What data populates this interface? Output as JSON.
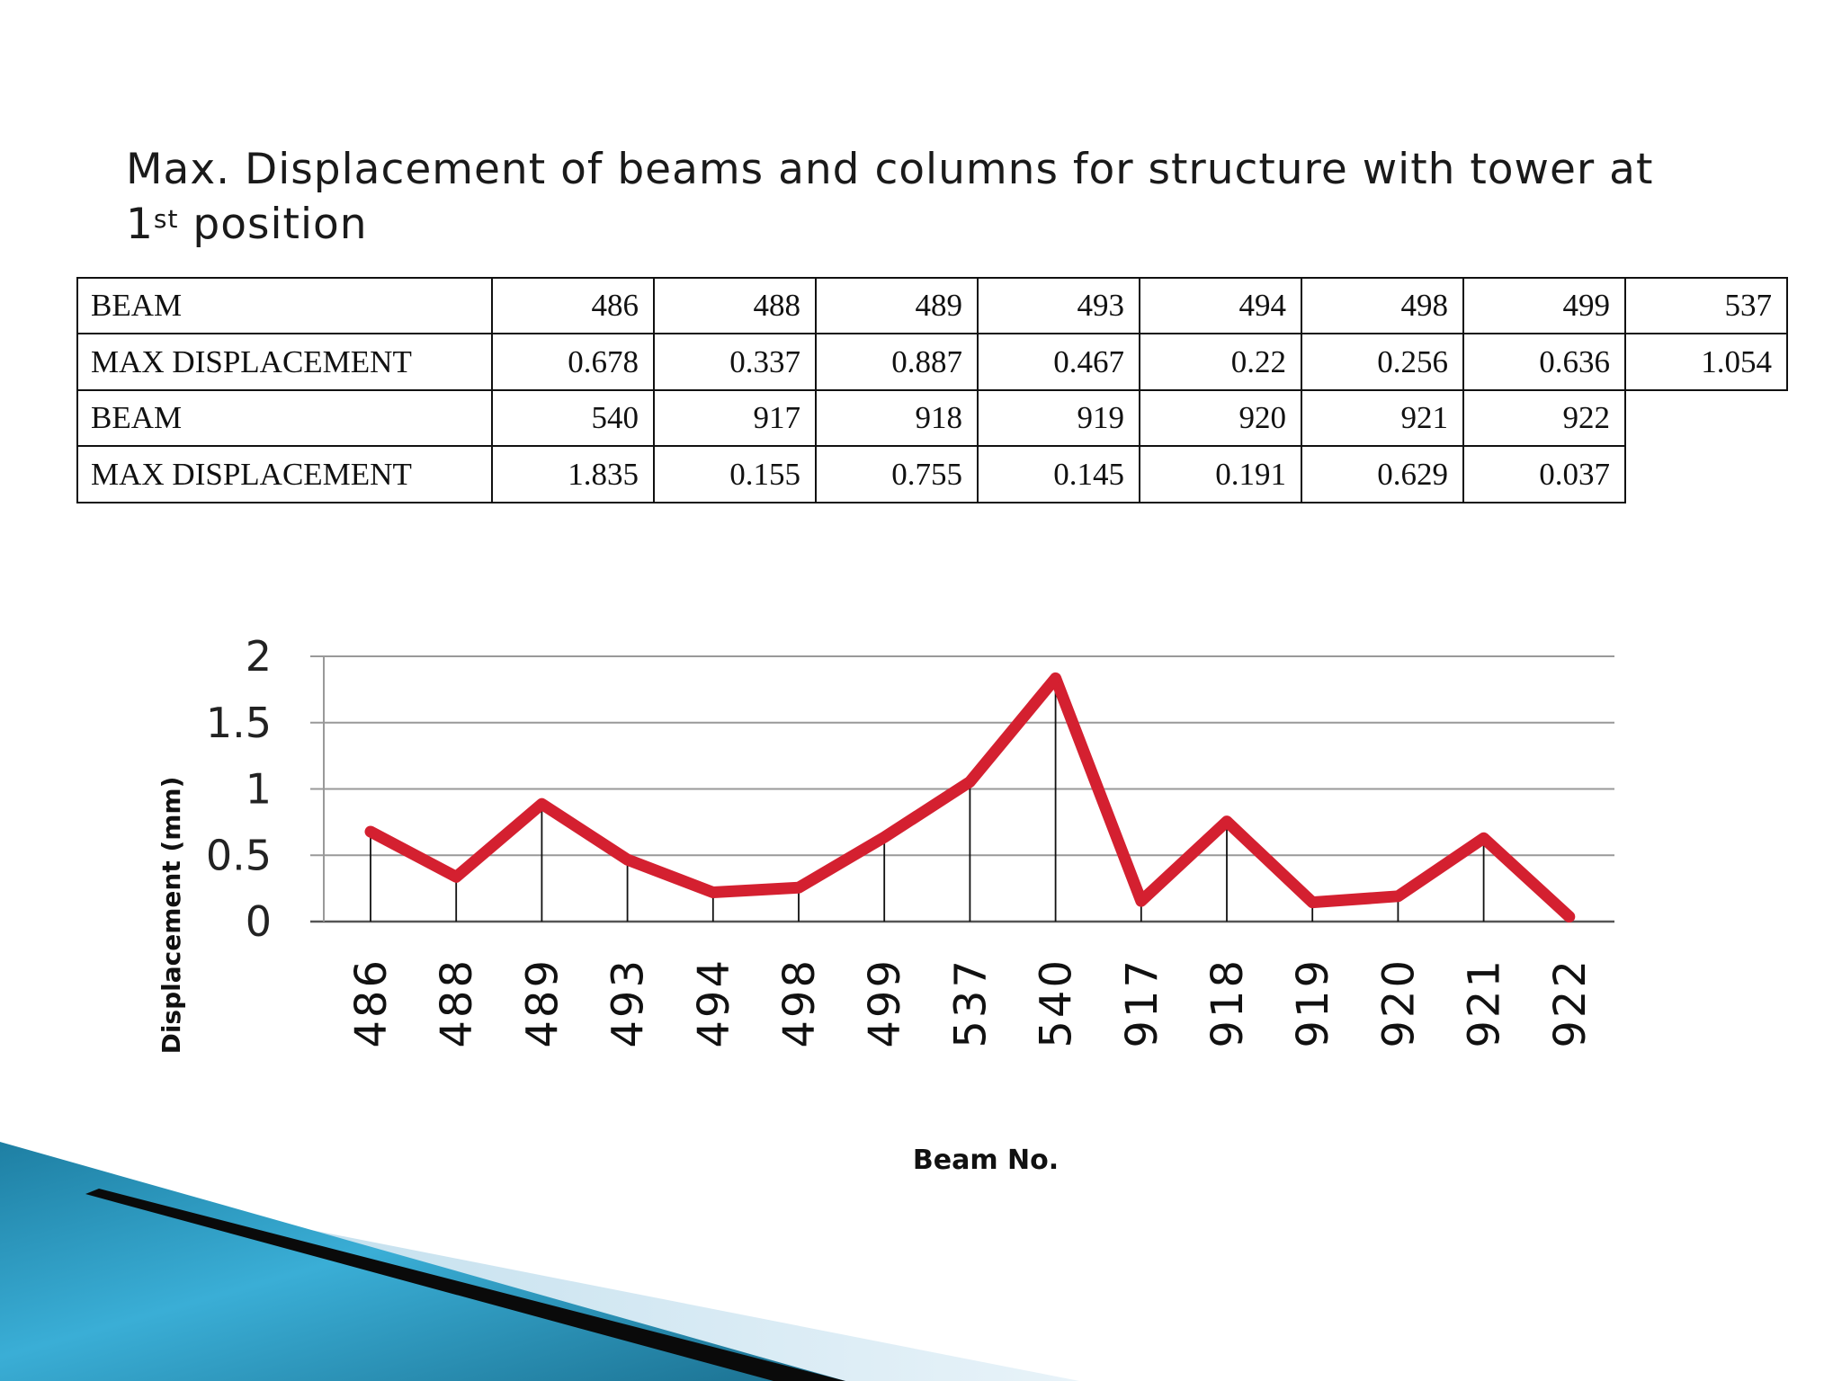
{
  "slide": {
    "title_main": "Max. Displacement of beams and columns for structure with tower at ",
    "title_sup_prefix": "1",
    "title_sup": "st",
    "title_rest": " position"
  },
  "table": {
    "rows": [
      {
        "label": "BEAM",
        "values": [
          "486",
          "488",
          "489",
          "493",
          "494",
          "498",
          "499",
          "537"
        ]
      },
      {
        "label": "MAX DISPLACEMENT",
        "values": [
          "0.678",
          "0.337",
          "0.887",
          "0.467",
          "0.22",
          "0.256",
          "0.636",
          "1.054"
        ]
      },
      {
        "label": "BEAM",
        "values": [
          "540",
          "917",
          "918",
          "919",
          "920",
          "921",
          "922",
          ""
        ]
      },
      {
        "label": "MAX DISPLACEMENT",
        "values": [
          "1.835",
          "0.155",
          "0.755",
          "0.145",
          "0.191",
          "0.629",
          "0.037",
          ""
        ]
      }
    ]
  },
  "chart_data": {
    "type": "line",
    "categories": [
      "486",
      "488",
      "489",
      "493",
      "494",
      "498",
      "499",
      "537",
      "540",
      "917",
      "918",
      "919",
      "920",
      "921",
      "922"
    ],
    "series": [
      {
        "values": [
          0.678,
          0.337,
          0.887,
          0.467,
          0.22,
          0.256,
          0.636,
          1.054,
          1.835,
          0.155,
          0.755,
          0.145,
          0.191,
          0.629,
          0.037
        ]
      }
    ],
    "xlabel": "Beam No.",
    "ylabel": "Displacement (mm)",
    "ylim": [
      0,
      2
    ],
    "yticks": [
      "0",
      "0.5",
      "1",
      "1.5",
      "2"
    ],
    "grid": true,
    "drop_lines": true,
    "line_color": "#d42030"
  }
}
